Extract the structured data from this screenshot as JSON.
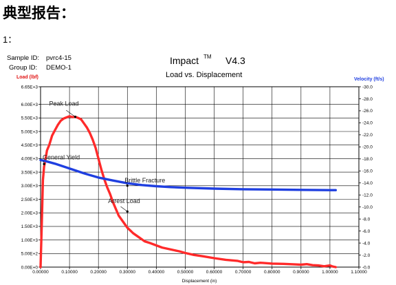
{
  "page": {
    "heading": "典型报告：",
    "subheading": "1："
  },
  "sample": {
    "sample_id_label": "Sample ID:",
    "sample_id_value": "pvrc4-15",
    "group_id_label": "Group ID:",
    "group_id_value": "DEMO-1"
  },
  "chart_data": {
    "type": "line",
    "title": "Impact",
    "title_sup": "TM",
    "title_version": "V4.3",
    "subtitle": "Load vs. Displacement",
    "xlabel": "Displacement (in)",
    "ylabel": "Load (lbf)",
    "y2label": "Velocity (ft/s)",
    "xlim": [
      0,
      1.1
    ],
    "ylim": [
      0,
      6650
    ],
    "y2lim": [
      0,
      30
    ],
    "x_ticks": [
      "0.00000",
      "0.10000",
      "0.20000",
      "0.30000",
      "0.40000",
      "0.50000",
      "0.60000",
      "0.70000",
      "0.80000",
      "0.90000",
      "1.00000",
      "1.10000"
    ],
    "y_ticks": [
      "0.00E+0",
      "5.00E+2",
      "1.00E+3",
      "1.50E+3",
      "2.00E+3",
      "2.50E+3",
      "3.00E+3",
      "3.50E+3",
      "4.00E+3",
      "4.50E+3",
      "5.00E+3",
      "5.50E+3",
      "6.00E+3",
      "6.65E+3"
    ],
    "y2_ticks": [
      "0.0",
      "2.0",
      "4.0",
      "6.0",
      "8.0",
      "10.0",
      "12.0",
      "14.0",
      "16.0",
      "18.0",
      "20.0",
      "22.0",
      "24.0",
      "26.0",
      "28.0",
      "30.0"
    ],
    "grid": true,
    "colors": {
      "load": "#ff2a2a",
      "velocity": "#1f3fe0",
      "ylabel": "#e01010",
      "y2label": "#1f3fe0"
    },
    "series": [
      {
        "axis": "left",
        "x": [
          0.0,
          0.005,
          0.008,
          0.012,
          0.016,
          0.022,
          0.03,
          0.04,
          0.05,
          0.06,
          0.07,
          0.08,
          0.09,
          0.1,
          0.11,
          0.12,
          0.13,
          0.14,
          0.15,
          0.16,
          0.17,
          0.18,
          0.19,
          0.2,
          0.21,
          0.22,
          0.23,
          0.24,
          0.25,
          0.26,
          0.27,
          0.28,
          0.29,
          0.3,
          0.31,
          0.32,
          0.34,
          0.36,
          0.38,
          0.4,
          0.42,
          0.45,
          0.48,
          0.5,
          0.53,
          0.56,
          0.6,
          0.64,
          0.68,
          0.7,
          0.72,
          0.74,
          0.76,
          0.8,
          0.84,
          0.88,
          0.9,
          0.92,
          0.94,
          0.96,
          0.98,
          1.0,
          1.01,
          1.02
        ],
        "y": [
          0,
          1900,
          3200,
          3700,
          3900,
          4300,
          4500,
          4850,
          5050,
          5250,
          5400,
          5480,
          5520,
          5560,
          5530,
          5540,
          5500,
          5450,
          5300,
          5150,
          4950,
          4700,
          4400,
          4000,
          3600,
          3250,
          2950,
          2700,
          2400,
          2150,
          1900,
          1750,
          1600,
          1450,
          1350,
          1250,
          1100,
          950,
          880,
          800,
          720,
          650,
          580,
          520,
          450,
          400,
          330,
          270,
          230,
          180,
          190,
          140,
          160,
          130,
          120,
          100,
          90,
          110,
          70,
          60,
          30,
          60,
          20,
          0
        ]
      },
      {
        "axis": "right",
        "x": [
          0.0,
          0.02,
          0.05,
          0.1,
          0.15,
          0.2,
          0.25,
          0.3,
          0.35,
          0.4,
          0.45,
          0.5,
          0.6,
          0.7,
          0.8,
          0.9,
          1.0,
          1.02
        ],
        "y": [
          17.8,
          17.6,
          17.2,
          16.4,
          15.6,
          14.9,
          14.4,
          13.95,
          13.65,
          13.45,
          13.3,
          13.2,
          13.05,
          12.95,
          12.9,
          12.85,
          12.8,
          12.8
        ]
      }
    ],
    "annotations": [
      {
        "text": "Peak Load",
        "x": 0.12,
        "y": 5540
      },
      {
        "text": "General Yield",
        "x": 0.012,
        "y": 3800
      },
      {
        "text": "Brittle Fracture",
        "x": 0.3,
        "y": 3000
      },
      {
        "text": "Arrest Load",
        "x": 0.3,
        "y": 2050
      }
    ]
  }
}
